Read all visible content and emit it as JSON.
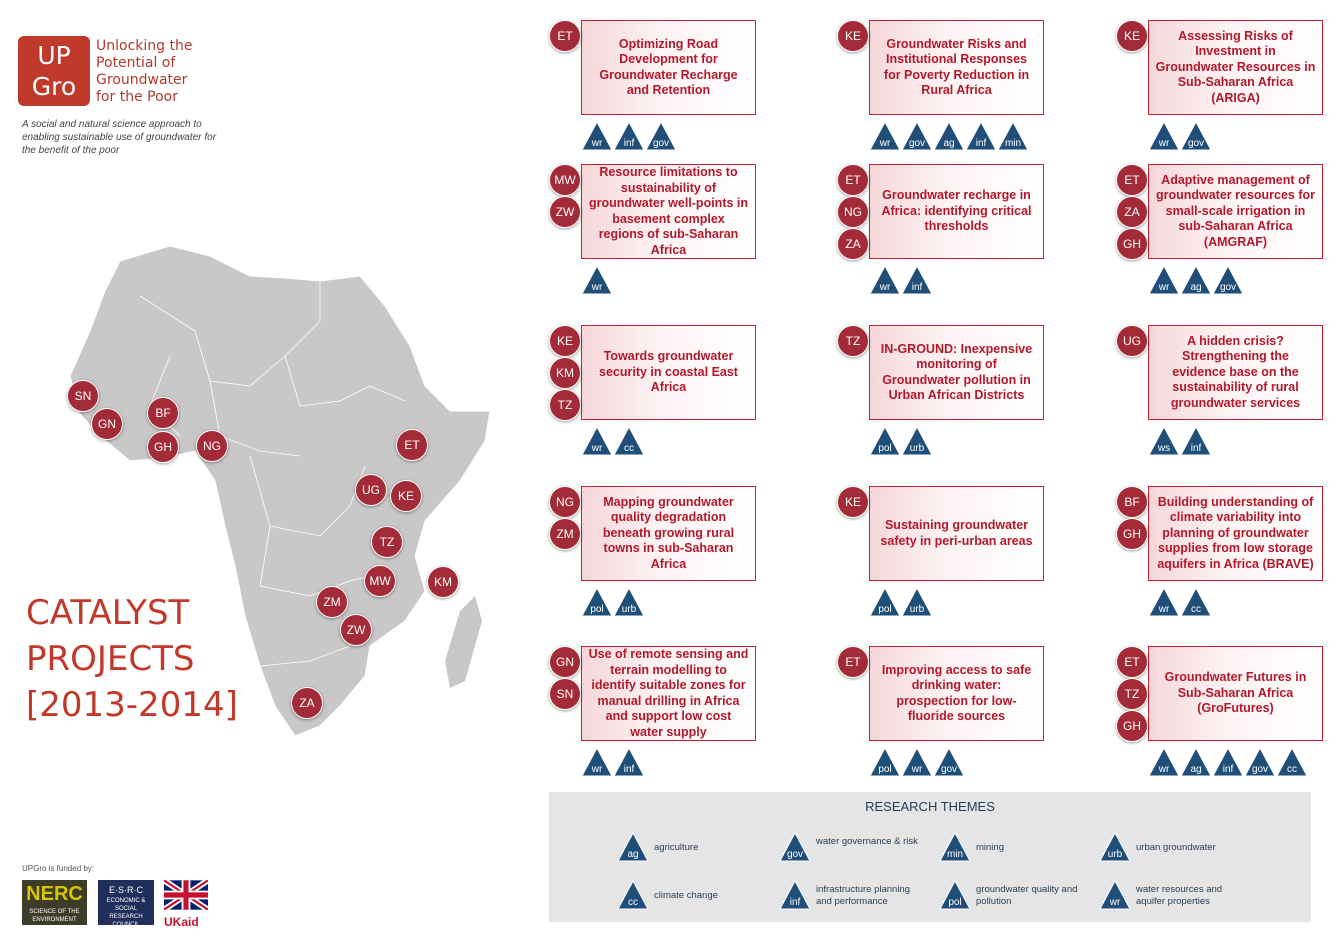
{
  "logo": {
    "mark_line1": "UP",
    "mark_line2": "Gro",
    "words": [
      "Unlocking the",
      "Potential of",
      "Groundwater",
      "for the Poor"
    ]
  },
  "tagline": "A social and natural science approach to enabling sustainable use of groundwater for the benefit of the poor",
  "title": {
    "line1": "CATALYST",
    "line2": "PROJECTS",
    "line3": "[2013-2014]"
  },
  "funded_by": "UPGro is funded by:",
  "funders": {
    "nerc_line1": "NERC",
    "nerc_line2": "SCIENCE OF THE ENVIRONMENT",
    "esrc_line1": "E·S·R·C",
    "esrc_line2": "ECONOMIC & SOCIAL RESEARCH COUNCIL",
    "ukaid": "UKaid"
  },
  "colors": {
    "accent": "#a32a37",
    "theme_triangle": "#1f4e79",
    "map": "#c8c8c8"
  },
  "map_labels": [
    "SN",
    "GN",
    "BF",
    "GH",
    "NG",
    "ET",
    "UG",
    "KE",
    "TZ",
    "KM",
    "MW",
    "ZM",
    "ZW",
    "ZA"
  ],
  "projects": [
    {
      "countries": [
        "ET"
      ],
      "title": "Optimizing Road Development for Groundwater Recharge and Retention",
      "themes": [
        "wr",
        "inf",
        "gov"
      ]
    },
    {
      "countries": [
        "KE"
      ],
      "title": "Groundwater Risks and Institutional Responses for Poverty Reduction in Rural Africa",
      "themes": [
        "wr",
        "gov",
        "ag",
        "inf",
        "min"
      ]
    },
    {
      "countries": [
        "KE"
      ],
      "title": "Assessing Risks of Investment in Groundwater Resources in Sub-Saharan Africa (ARIGA)",
      "themes": [
        "wr",
        "gov"
      ]
    },
    {
      "countries": [
        "MW",
        "ZW"
      ],
      "title": "Resource limitations to sustainability of groundwater well-points in basement complex regions of sub-Saharan Africa",
      "themes": [
        "wr"
      ]
    },
    {
      "countries": [
        "ET",
        "NG",
        "ZA"
      ],
      "title": "Groundwater recharge in Africa: identifying critical thresholds",
      "themes": [
        "wr",
        "inf"
      ]
    },
    {
      "countries": [
        "ET",
        "ZA",
        "GH"
      ],
      "title": "Adaptive management of groundwater resources for small-scale irrigation in sub-Saharan Africa (AMGRAF)",
      "themes": [
        "wr",
        "ag",
        "gov"
      ]
    },
    {
      "countries": [
        "KE",
        "KM",
        "TZ"
      ],
      "title": "Towards groundwater security in coastal East Africa",
      "themes": [
        "wr",
        "cc"
      ]
    },
    {
      "countries": [
        "TZ"
      ],
      "title": "IN-GROUND: Inexpensive monitoring of Groundwater pollution in Urban African Districts",
      "themes": [
        "pol",
        "urb"
      ]
    },
    {
      "countries": [
        "UG"
      ],
      "title": "A hidden crisis? Strengthening the evidence base on the sustainability of rural groundwater services",
      "themes": [
        "ws",
        "inf"
      ]
    },
    {
      "countries": [
        "NG",
        "ZM"
      ],
      "title": "Mapping groundwater quality degradation beneath growing rural towns in sub-Saharan Africa",
      "themes": [
        "pol",
        "urb"
      ]
    },
    {
      "countries": [
        "KE"
      ],
      "title": "Sustaining groundwater safety in peri-urban areas",
      "themes": [
        "pol",
        "urb"
      ]
    },
    {
      "countries": [
        "BF",
        "GH"
      ],
      "title": "Building understanding of climate variability into planning of groundwater supplies from low storage aquifers in Africa (BRAVE)",
      "themes": [
        "wr",
        "cc"
      ]
    },
    {
      "countries": [
        "GN",
        "SN"
      ],
      "title": "Use of remote sensing and terrain modelling to identify suitable zones for manual drilling in Africa and support low cost water supply",
      "themes": [
        "wr",
        "inf"
      ]
    },
    {
      "countries": [
        "ET"
      ],
      "title": "Improving access to safe drinking water: prospection for low-fluoride sources",
      "themes": [
        "pol",
        "wr",
        "gov"
      ]
    },
    {
      "countries": [
        "ET",
        "TZ",
        "GH"
      ],
      "title": "Groundwater Futures in Sub-Saharan Africa (GroFutures)",
      "themes": [
        "wr",
        "ag",
        "inf",
        "gov",
        "cc"
      ]
    }
  ],
  "legend": {
    "title": "RESEARCH THEMES",
    "items": [
      {
        "code": "ag",
        "label": "agriculture"
      },
      {
        "code": "gov",
        "label": "water governance & risk"
      },
      {
        "code": "min",
        "label": "mining"
      },
      {
        "code": "urb",
        "label": "urban groundwater"
      },
      {
        "code": "cc",
        "label": "climate change"
      },
      {
        "code": "inf",
        "label": "infrastructure planning and performance"
      },
      {
        "code": "pol",
        "label": "groundwater quality and pollution"
      },
      {
        "code": "wr",
        "label": "water resources and aquifer properties"
      }
    ]
  }
}
